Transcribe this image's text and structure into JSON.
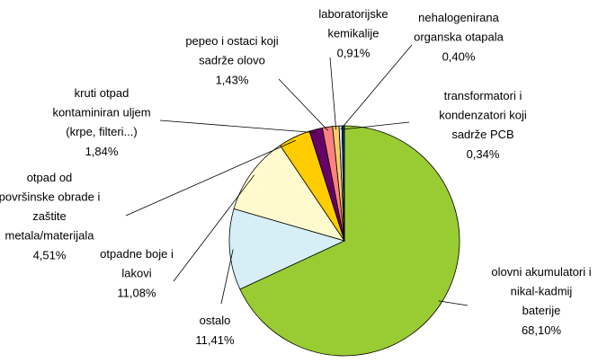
{
  "chart_data": {
    "type": "pie",
    "categories": [
      "olovni akumulatori i\nnikal-kadmij\nbaterije",
      "ostalo",
      "otpadne boje i\nlakovi",
      "otpad od\npovršinske obrade i\nzaštite\nmetala/materijala",
      "kruti otpad\nkontaminiran uljem\n(krpe, filteri...)",
      "pepeo i ostaci koji\nsadrže olovo",
      "laboratorijske\nkemikalije",
      "nehalogenirana\norganska otapala",
      "transformatori i\nkondenzatori koji\nsadrže PCB"
    ],
    "values": [
      68.1,
      11.41,
      11.08,
      4.51,
      1.84,
      1.43,
      0.91,
      0.4,
      0.34
    ],
    "value_labels": [
      "68,10%",
      "11,41%",
      "11,08%",
      "4,51%",
      "1,84%",
      "1,43%",
      "0,91%",
      "0,40%",
      "0,34%"
    ],
    "colors": [
      "#99cc33",
      "#d6eef6",
      "#fffacd",
      "#ffcc00",
      "#660066",
      "#ff8080",
      "#ffcc66",
      "#cceeff",
      "#003366"
    ]
  }
}
